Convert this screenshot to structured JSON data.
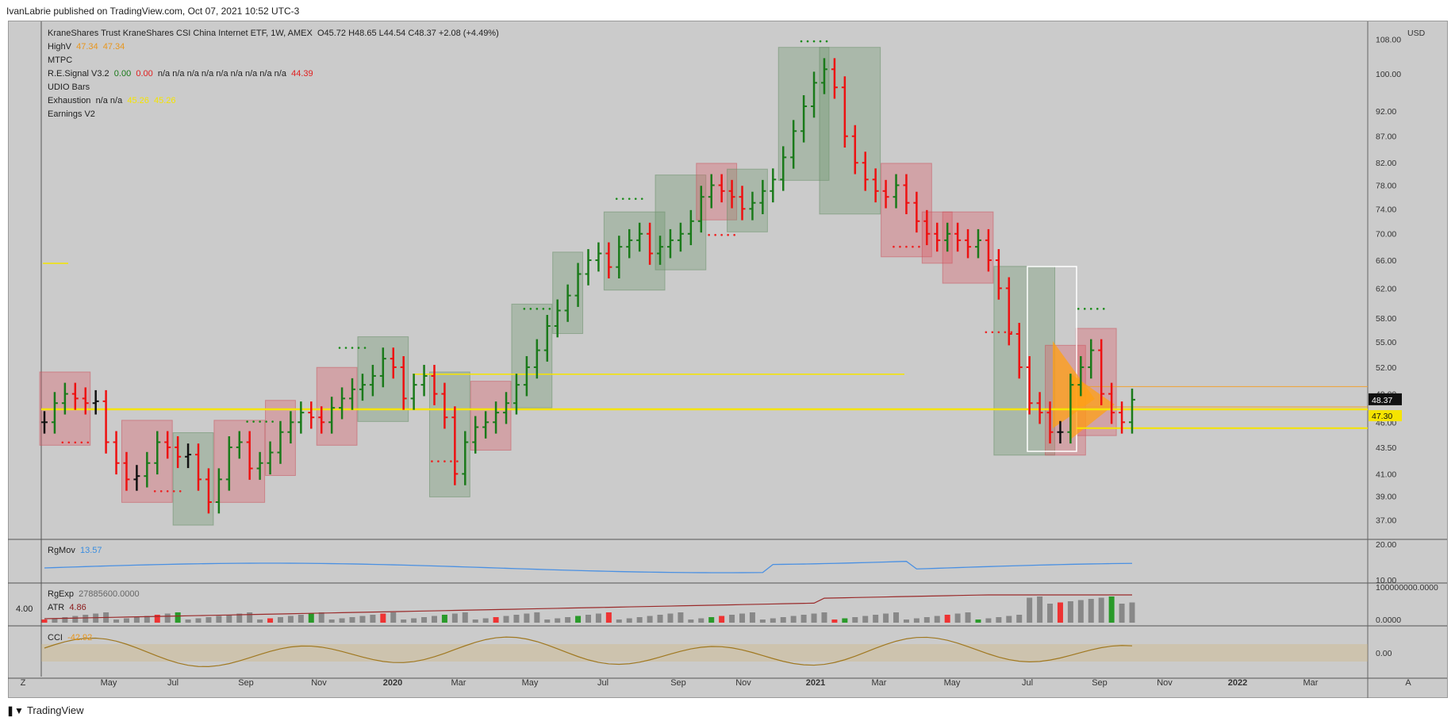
{
  "header": {
    "publish_line": "IvanLabrie published on TradingView.com, Oct 07, 2021 10:52 UTC-3"
  },
  "footer": {
    "brand": "TradingView"
  },
  "legend": {
    "title": "KraneShares Trust KraneShares CSI China Internet ETF, 1W, AMEX",
    "ohlc": {
      "O": "O45.72",
      "H": "H48.65",
      "L": "L44.54",
      "C": "C48.37",
      "chg": "+2.08 (+4.49%)"
    },
    "highv": {
      "label": "HighV",
      "v1": "47.34",
      "v2": "47.34"
    },
    "mtpc": "MTPC",
    "resignal": {
      "label": "R.E.Signal V3.2",
      "v1": "0.00",
      "v2": "0.00",
      "rest": "n/a  n/a  n/a  n/a  n/a  n/a  n/a  n/a  n/a",
      "last": "44.39"
    },
    "udio": "UDIO Bars",
    "exhaustion": {
      "label": "Exhaustion",
      "rest": "n/a  n/a",
      "v1": "45.26",
      "v2": "45.26"
    },
    "earnings": "Earnings V2"
  },
  "panes": {
    "rgmov": {
      "label": "RgMov",
      "value": "13.57"
    },
    "rgexp": {
      "label": "RgExp",
      "value": "27885600.0000"
    },
    "atr": {
      "label": "ATR",
      "value": "4.86"
    },
    "cci": {
      "label": "CCI",
      "value": "-42.92"
    },
    "left_value": "4.00"
  },
  "axis": {
    "currency": "USD",
    "auto_btn": "A",
    "zoom_btn": "Z",
    "price_ticks": [
      "108.00",
      "100.00",
      "92.00",
      "87.00",
      "82.00",
      "78.00",
      "74.00",
      "70.00",
      "66.00",
      "62.00",
      "58.00",
      "55.00",
      "52.00",
      "49.00",
      "46.00",
      "43.50",
      "41.00",
      "39.00",
      "37.00"
    ],
    "rgmov_ticks": [
      "20.00",
      "10.00"
    ],
    "vol_ticks": [
      "100000000.0000",
      "0.0000"
    ],
    "cci_ticks": [
      "0.00"
    ],
    "last_price": "48.37",
    "highv_price": "47.30",
    "x_ticks": [
      "May",
      "Jul",
      "Sep",
      "Nov",
      "2020",
      "Mar",
      "May",
      "Jul",
      "Sep",
      "Nov",
      "2021",
      "Mar",
      "May",
      "Jul",
      "Sep",
      "Nov",
      "2022",
      "Mar"
    ]
  },
  "chart_data": {
    "type": "bar",
    "title": "KraneShares Trust KraneShares CSI China Internet ETF, 1W, AMEX",
    "ylabel": "USD",
    "ylim": [
      36,
      110
    ],
    "scale": "log",
    "x_period": "weekly, Mar 2019 – Oct 2021",
    "series": [
      {
        "name": "KWEB",
        "close": [
          46,
          48,
          49,
          48.5,
          48,
          48.2,
          44,
          42,
          40.5,
          40.8,
          42,
          44,
          43.5,
          42.6,
          42.8,
          40.5,
          38.5,
          40.5,
          43.5,
          44,
          41.5,
          42,
          43,
          45,
          46,
          47,
          46.5,
          46,
          47.5,
          48.5,
          49.5,
          50,
          51,
          53,
          52,
          48.5,
          50,
          51,
          49,
          46.5,
          41,
          44,
          45.5,
          46,
          47,
          48,
          50,
          52,
          54,
          57,
          59,
          61,
          64,
          66,
          67,
          65,
          68,
          69,
          70,
          67,
          68,
          69,
          70,
          72,
          76,
          78,
          77,
          76,
          74,
          75,
          77,
          79,
          83,
          88,
          93,
          98,
          101,
          97,
          87,
          82,
          79,
          77,
          76,
          78,
          75,
          72,
          70,
          69,
          70,
          69,
          68,
          69,
          66,
          62,
          56,
          52,
          48,
          47,
          45,
          45,
          50,
          52,
          54,
          49,
          47,
          46,
          48.37
        ]
      }
    ]
  }
}
